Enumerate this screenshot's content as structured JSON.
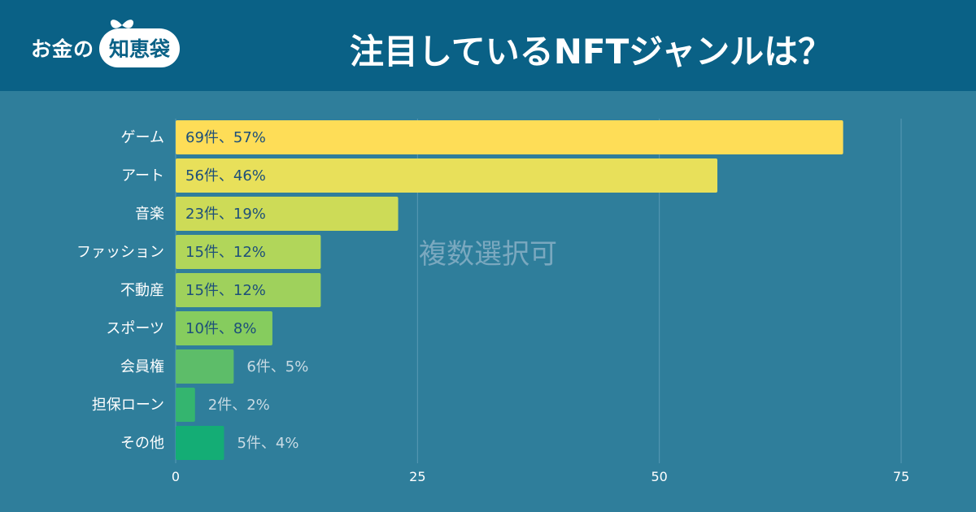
{
  "brand": {
    "logo_prefix": "お金の",
    "logo_bag": "知恵袋"
  },
  "header": {
    "title": "注目しているNFTジャンルは？"
  },
  "chart_data": {
    "type": "bar",
    "orientation": "horizontal",
    "title": "注目しているNFTジャンルは？",
    "note": "複数選択可",
    "categories": [
      "ゲーム",
      "アート",
      "音楽",
      "ファッション",
      "不動産",
      "スポーツ",
      "会員権",
      "担保ローン",
      "その他"
    ],
    "values": [
      69,
      56,
      23,
      15,
      15,
      10,
      6,
      2,
      5
    ],
    "data_labels": [
      "69件、57%",
      "56件、46%",
      "23件、19%",
      "15件、12%",
      "15件、12%",
      "10件、8%",
      "6件、5%",
      "2件、2%",
      "5件、4%"
    ],
    "colors": [
      "#fedd57",
      "#e8e05a",
      "#cddb57",
      "#b1d65a",
      "#9fd15c",
      "#86cc5e",
      "#5dbd69",
      "#34b56f",
      "#14ad75"
    ],
    "xlim": [
      0,
      75
    ],
    "xticks": [
      0,
      25,
      50,
      75
    ],
    "grid": true,
    "xlabel": "",
    "ylabel": ""
  }
}
